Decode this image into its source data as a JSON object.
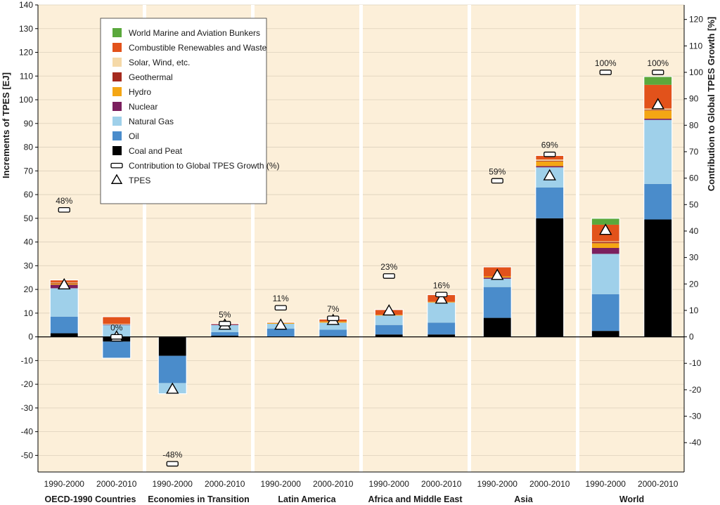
{
  "chart_data": {
    "type": "bar",
    "stacked": true,
    "ylabel": "Increments of TPES [EJ]",
    "y2label": "Contribution to Global TPES Growth [%]",
    "ylim": [
      -57,
      140
    ],
    "y_ticks": [
      "140",
      "130",
      "120",
      "110",
      "100",
      "90",
      "80",
      "70",
      "60",
      "50",
      "40",
      "30",
      "20",
      "10",
      "0",
      "-10",
      "-20",
      "-30",
      "-40",
      "-50"
    ],
    "y2lim": [
      -50,
      126
    ],
    "y2_ticks": [
      "120",
      "110",
      "100",
      "90",
      "80",
      "70",
      "60",
      "50",
      "40",
      "30",
      "20",
      "10",
      "0",
      "-10",
      "-20",
      "-30",
      "-40"
    ],
    "grid": true,
    "legend_position": "top-left",
    "series": [
      {
        "key": "coal",
        "name": "Coal and Peat",
        "color": "#000000"
      },
      {
        "key": "oil",
        "name": "Oil",
        "color": "#4a8ccb"
      },
      {
        "key": "gas",
        "name": "Natural Gas",
        "color": "#9fd0ea"
      },
      {
        "key": "nuclear",
        "name": "Nuclear",
        "color": "#7b1f5e"
      },
      {
        "key": "hydro",
        "name": "Hydro",
        "color": "#f4a614"
      },
      {
        "key": "geothermal",
        "name": "Geothermal",
        "color": "#a52a1e"
      },
      {
        "key": "solar",
        "name": "Solar, Wind, etc.",
        "color": "#f5d9a8"
      },
      {
        "key": "renew",
        "name": "Combustible Renewables and Waste",
        "color": "#e2521b"
      },
      {
        "key": "bunkers",
        "name": "World Marine and Aviation Bunkers",
        "color": "#5aa83c"
      }
    ],
    "legend_order": [
      "bunkers",
      "renew",
      "solar",
      "geothermal",
      "hydro",
      "nuclear",
      "gas",
      "oil",
      "coal"
    ],
    "legend_extra": [
      "Contribution to Global TPES Growth (%)",
      "TPES"
    ],
    "groups": [
      {
        "name": "OECD-1990 Countries",
        "bars": [
          {
            "period": "1990-2000",
            "values": {
              "coal": 1.5,
              "oil": 7,
              "gas": 12,
              "nuclear": 1.5,
              "hydro": 0.5,
              "geothermal": 0.3,
              "solar": 0.2,
              "renew": 1,
              "bunkers": 0
            },
            "tpes": 22,
            "contribution": 48,
            "contribution_label": "48%"
          },
          {
            "period": "2000-2010",
            "values": {
              "coal": -2,
              "oil": -7,
              "gas": 5,
              "nuclear": 0.2,
              "hydro": 0,
              "geothermal": 0,
              "solar": 0.3,
              "renew": 3,
              "bunkers": 0
            },
            "tpes": 0,
            "contribution": 0,
            "contribution_label": "0%"
          }
        ]
      },
      {
        "name": "Economies in Transition",
        "bars": [
          {
            "period": "1990-2000",
            "values": {
              "coal": -8,
              "oil": -11.5,
              "gas": -4.5,
              "nuclear": 0,
              "hydro": 0,
              "geothermal": 0,
              "solar": 0,
              "renew": 0,
              "bunkers": 0
            },
            "tpes": -22,
            "contribution": -48,
            "contribution_label": "-48%"
          },
          {
            "period": "2000-2010",
            "values": {
              "coal": 0.5,
              "oil": 1.5,
              "gas": 3,
              "nuclear": 0.3,
              "hydro": 0,
              "geothermal": 0,
              "solar": 0,
              "renew": 0.3,
              "bunkers": 0
            },
            "tpes": 5,
            "contribution": 5,
            "contribution_label": "5%"
          }
        ]
      },
      {
        "name": "Latin America",
        "bars": [
          {
            "period": "1990-2000",
            "values": {
              "coal": 0,
              "oil": 3.5,
              "gas": 2,
              "nuclear": 0,
              "hydro": 0.3,
              "geothermal": 0,
              "solar": 0,
              "renew": 0.3,
              "bunkers": 0
            },
            "tpes": 5,
            "contribution": 11,
            "contribution_label": "11%"
          },
          {
            "period": "2000-2010",
            "values": {
              "coal": 0.3,
              "oil": 2.7,
              "gas": 3,
              "nuclear": 0,
              "hydro": 0.5,
              "geothermal": 0,
              "solar": 0,
              "renew": 1,
              "bunkers": 0
            },
            "tpes": 7,
            "contribution": 7,
            "contribution_label": "7%"
          }
        ]
      },
      {
        "name": "Africa and Middle East",
        "bars": [
          {
            "period": "1990-2000",
            "values": {
              "coal": 1,
              "oil": 4,
              "gas": 4,
              "nuclear": 0,
              "hydro": 0.3,
              "geothermal": 0,
              "solar": 0,
              "renew": 2.2,
              "bunkers": 0
            },
            "tpes": 11,
            "contribution": 23,
            "contribution_label": "23%"
          },
          {
            "period": "2000-2010",
            "values": {
              "coal": 1,
              "oil": 5,
              "gas": 8.5,
              "nuclear": 0,
              "hydro": 0.3,
              "geothermal": 0,
              "solar": 0,
              "renew": 3,
              "bunkers": 0
            },
            "tpes": 16,
            "contribution": 16,
            "contribution_label": "16%"
          }
        ]
      },
      {
        "name": "Asia",
        "bars": [
          {
            "period": "1990-2000",
            "values": {
              "coal": 8,
              "oil": 13,
              "gas": 3.5,
              "nuclear": 0.5,
              "hydro": 0.5,
              "geothermal": 0,
              "solar": 0,
              "renew": 4,
              "bunkers": 0
            },
            "tpes": 26,
            "contribution": 59,
            "contribution_label": "59%"
          },
          {
            "period": "2000-2010",
            "values": {
              "coal": 50,
              "oil": 13,
              "gas": 8.5,
              "nuclear": 0.5,
              "hydro": 2,
              "geothermal": 0.3,
              "solar": 0.5,
              "renew": 1.7,
              "bunkers": 0
            },
            "tpes": 68,
            "contribution": 69,
            "contribution_label": "69%"
          }
        ]
      },
      {
        "name": "World",
        "bars": [
          {
            "period": "1990-2000",
            "values": {
              "coal": 2.5,
              "oil": 15.5,
              "gas": 17,
              "nuclear": 2.5,
              "hydro": 2,
              "geothermal": 0.5,
              "solar": 0.3,
              "renew": 7,
              "bunkers": 2.7
            },
            "tpes": 45,
            "contribution": 100,
            "contribution_label": "100%"
          },
          {
            "period": "2000-2010",
            "values": {
              "coal": 49.5,
              "oil": 15,
              "gas": 27,
              "nuclear": 0.5,
              "hydro": 3.5,
              "geothermal": 0.3,
              "solar": 0.5,
              "renew": 10,
              "bunkers": 3.5
            },
            "tpes": 98,
            "contribution": 100,
            "contribution_label": "100%"
          }
        ]
      }
    ]
  }
}
